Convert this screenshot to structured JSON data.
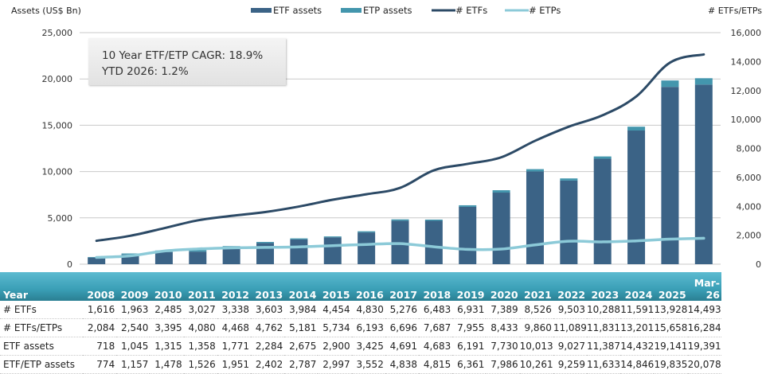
{
  "chart_data": {
    "type": "bar",
    "title": "",
    "categories": [
      "2008",
      "2009",
      "2010",
      "2011",
      "2012",
      "2013",
      "2014",
      "2015",
      "2016",
      "2017",
      "2018",
      "2019",
      "2020",
      "2021",
      "2022",
      "2023",
      "2024",
      "2025",
      "Mar-26"
    ],
    "left_axis": {
      "label": "Assets (US$ Bn)",
      "ylim": [
        0,
        25000
      ],
      "ticks": [
        0,
        5000,
        10000,
        15000,
        20000,
        25000
      ],
      "tick_labels": [
        "0",
        "5,000",
        "10,000",
        "15,000",
        "20,000",
        "25,000"
      ]
    },
    "right_axis": {
      "label": "# ETFs/ETPs",
      "ylim": [
        0,
        16000
      ],
      "ticks": [
        0,
        2000,
        4000,
        6000,
        8000,
        10000,
        12000,
        14000,
        16000
      ],
      "tick_labels": [
        "0",
        "2,000",
        "4,000",
        "6,000",
        "8,000",
        "10,000",
        "12,000",
        "14,000",
        "16,000"
      ]
    },
    "grid": true,
    "legend_position": "top-center",
    "series": [
      {
        "name": "ETF assets",
        "type": "bar",
        "axis": "left",
        "stack": "assets",
        "color": "#3b6386",
        "values": [
          718,
          1045,
          1315,
          1358,
          1771,
          2284,
          2675,
          2900,
          3425,
          4691,
          4683,
          6191,
          7730,
          10013,
          9027,
          11387,
          14432,
          19141,
          19391
        ]
      },
      {
        "name": "ETP assets",
        "type": "bar",
        "axis": "left",
        "stack": "assets",
        "color": "#4396ad",
        "values": [
          56,
          112,
          163,
          168,
          180,
          118,
          112,
          97,
          127,
          147,
          132,
          170,
          256,
          248,
          232,
          246,
          414,
          694,
          687
        ]
      },
      {
        "name": "# ETFs",
        "type": "line",
        "axis": "right",
        "color": "#2c4a66",
        "values": [
          1616,
          1963,
          2485,
          3027,
          3338,
          3603,
          3984,
          4454,
          4830,
          5276,
          6483,
          6931,
          7389,
          8526,
          9503,
          10288,
          11591,
          13928,
          14493
        ]
      },
      {
        "name": "# ETPs",
        "type": "line",
        "axis": "right",
        "color": "#8ccad8",
        "values": [
          468,
          577,
          910,
          1053,
          1130,
          1159,
          1197,
          1280,
          1363,
          1420,
          1204,
          1024,
          1044,
          1334,
          1586,
          1543,
          1610,
          1730,
          1791
        ]
      }
    ],
    "annotation": [
      "10 Year ETF/ETP CAGR: 18.9%",
      "YTD 2026: 1.2%"
    ]
  },
  "table": {
    "header": [
      "Year",
      "2008",
      "2009",
      "2010",
      "2011",
      "2012",
      "2013",
      "2014",
      "2015",
      "2016",
      "2017",
      "2018",
      "2019",
      "2020",
      "2021",
      "2022",
      "2023",
      "2024",
      "2025",
      "Mar-26"
    ],
    "rows": [
      [
        "# ETFs",
        "1,616",
        "1,963",
        "2,485",
        "3,027",
        "3,338",
        "3,603",
        "3,984",
        "4,454",
        "4,830",
        "5,276",
        "6,483",
        "6,931",
        "7,389",
        "8,526",
        "9,503",
        "10,288",
        "11,591",
        "13,928",
        "14,493"
      ],
      [
        "# ETFs/ETPs",
        "2,084",
        "2,540",
        "3,395",
        "4,080",
        "4,468",
        "4,762",
        "5,181",
        "5,734",
        "6,193",
        "6,696",
        "7,687",
        "7,955",
        "8,433",
        "9,860",
        "11,089",
        "11,831",
        "13,201",
        "15,658",
        "16,284"
      ],
      [
        "ETF assets",
        "718",
        "1,045",
        "1,315",
        "1,358",
        "1,771",
        "2,284",
        "2,675",
        "2,900",
        "3,425",
        "4,691",
        "4,683",
        "6,191",
        "7,730",
        "10,013",
        "9,027",
        "11,387",
        "14,432",
        "19,141",
        "19,391"
      ],
      [
        "ETF/ETP assets",
        "774",
        "1,157",
        "1,478",
        "1,526",
        "1,951",
        "2,402",
        "2,787",
        "2,997",
        "3,552",
        "4,838",
        "4,815",
        "6,361",
        "7,986",
        "10,261",
        "9,259",
        "11,633",
        "14,846",
        "19,835",
        "20,078"
      ]
    ]
  }
}
